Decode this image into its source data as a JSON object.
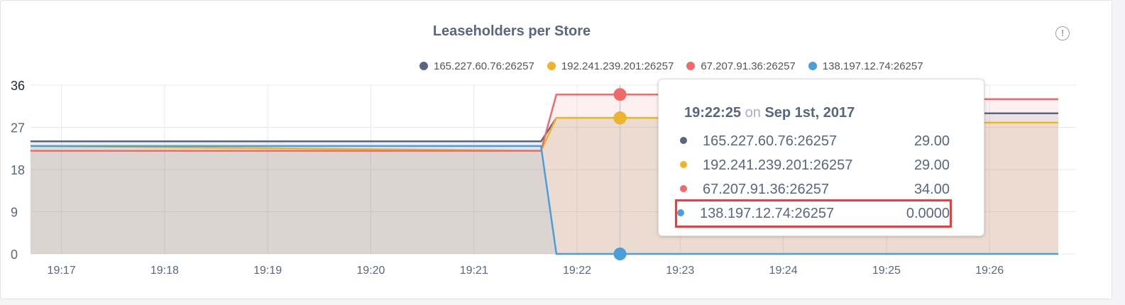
{
  "chart_data": {
    "type": "area",
    "title": "Leaseholders per Store",
    "ylim": [
      0,
      36
    ],
    "yticks": [
      0,
      9,
      18,
      27,
      36
    ],
    "xlim": [
      "19:16:42",
      "19:26:40"
    ],
    "xticks": [
      "19:17",
      "19:18",
      "19:19",
      "19:20",
      "19:21",
      "19:22",
      "19:23",
      "19:24",
      "19:25",
      "19:26"
    ],
    "grid": true,
    "legend_position": "top",
    "series": [
      {
        "name": "165.227.60.76:26257",
        "color": "#5a6580",
        "points": [
          [
            "19:16:42",
            24
          ],
          [
            "19:21:39",
            24
          ],
          [
            "19:21:48",
            29
          ],
          [
            "19:23:30",
            29
          ],
          [
            "19:23:31",
            30
          ],
          [
            "19:26:40",
            30
          ]
        ]
      },
      {
        "name": "192.241.239.201:26257",
        "color": "#f0b429",
        "points": [
          [
            "19:16:42",
            23
          ],
          [
            "19:21:39",
            22
          ],
          [
            "19:21:48",
            29
          ],
          [
            "19:23:30",
            29
          ],
          [
            "19:23:31",
            28
          ],
          [
            "19:26:40",
            28
          ]
        ]
      },
      {
        "name": "67.207.91.36:26257",
        "color": "#f06a6a",
        "points": [
          [
            "19:16:42",
            22
          ],
          [
            "19:21:39",
            22
          ],
          [
            "19:21:48",
            34
          ],
          [
            "19:23:30",
            34
          ],
          [
            "19:23:31",
            33
          ],
          [
            "19:26:40",
            33
          ]
        ]
      },
      {
        "name": "138.197.12.74:26257",
        "color": "#4a9fd8",
        "points": [
          [
            "19:16:42",
            23
          ],
          [
            "19:21:39",
            23
          ],
          [
            "19:21:48",
            0
          ],
          [
            "19:26:40",
            0
          ]
        ]
      }
    ],
    "hover_time": "19:22:25"
  },
  "info_icon": "info-circle-icon",
  "info_glyph": "!",
  "tooltip": {
    "time": "19:22:25",
    "on": "on",
    "date": "Sep 1st, 2017",
    "rows": [
      {
        "name": "165.227.60.76:26257",
        "value": "29.00",
        "color": "#5a6580"
      },
      {
        "name": "192.241.239.201:26257",
        "value": "29.00",
        "color": "#f0b429"
      },
      {
        "name": "67.207.91.36:26257",
        "value": "34.00",
        "color": "#f06a6a"
      },
      {
        "name": "138.197.12.74:26257",
        "value": "0.0000",
        "color": "#4a9fd8",
        "highlighted": true
      }
    ]
  }
}
